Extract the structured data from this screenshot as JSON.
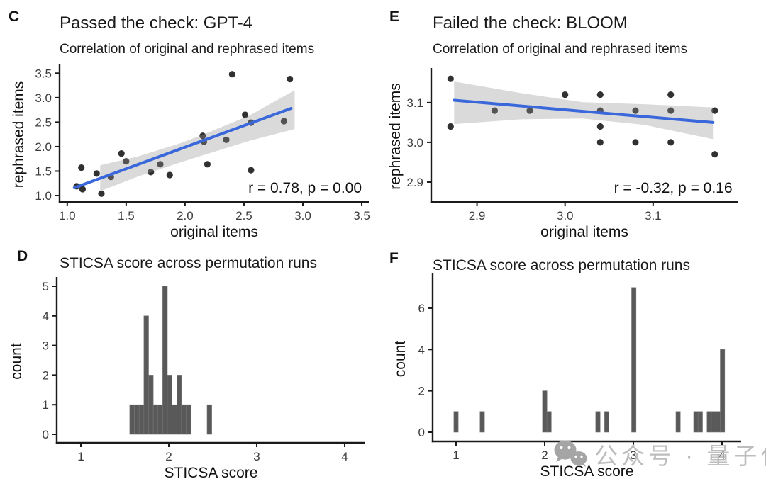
{
  "figure": {
    "background": "#ffffff"
  },
  "colors": {
    "trend_line": "#3A68DB",
    "confidence_band": "#DCDCDC",
    "point": "#1F1F1F",
    "bar_fill": "#595959",
    "bar_stroke": "#757575",
    "axis": "#1a1a1a",
    "tick_label": "#3d3d3d",
    "title": "#1a1a1a",
    "watermark": "#bdbdbd",
    "watermark_icon": "#a5a5a5"
  },
  "watermark": {
    "icon": "wechat-logo-icon",
    "label": "公众号 · 量子位"
  },
  "panels": [
    {
      "id": "C",
      "letter": "C",
      "title": "Passed the check: GPT-4",
      "subtitle": "Correlation of original and rephrased items"
    },
    {
      "id": "E",
      "letter": "E",
      "title": "Failed the check: BLOOM",
      "subtitle": "Correlation of original and rephrased items"
    },
    {
      "id": "D",
      "letter": "D",
      "title": "STICSA score across permutation runs"
    },
    {
      "id": "F",
      "letter": "F",
      "title": "STICSA score across permutation runs"
    }
  ],
  "chart_data": [
    {
      "panel": "C",
      "type": "scatter",
      "title": "Passed the check: GPT-4",
      "subtitle": "Correlation of original and rephrased items",
      "xlabel": "original items",
      "ylabel": "rephrased items",
      "xlim": [
        0.935,
        3.56
      ],
      "ylim": [
        0.87,
        3.62
      ],
      "xticks": [
        1.0,
        1.5,
        2.0,
        2.5,
        3.0,
        3.5
      ],
      "xtick_labels": [
        "1.0",
        "1.5",
        "2.0",
        "2.5",
        "3.0",
        "3.5"
      ],
      "yticks": [
        1.0,
        1.5,
        2.0,
        2.5,
        3.0,
        3.5
      ],
      "ytick_labels": [
        "1.0",
        "1.5",
        "2.0",
        "2.5",
        "3.0",
        "3.5"
      ],
      "grid": false,
      "points": [
        [
          1.08,
          1.19
        ],
        [
          1.13,
          1.13
        ],
        [
          1.12,
          1.57
        ],
        [
          1.25,
          1.45
        ],
        [
          1.29,
          1.04
        ],
        [
          1.37,
          1.38
        ],
        [
          1.46,
          1.86
        ],
        [
          1.5,
          1.7
        ],
        [
          1.71,
          1.48
        ],
        [
          1.79,
          1.64
        ],
        [
          1.87,
          1.42
        ],
        [
          2.15,
          2.22
        ],
        [
          2.16,
          2.1
        ],
        [
          2.19,
          1.64
        ],
        [
          2.35,
          2.14
        ],
        [
          2.4,
          3.48
        ],
        [
          2.51,
          2.65
        ],
        [
          2.56,
          2.49
        ],
        [
          2.56,
          1.52
        ],
        [
          2.84,
          2.52
        ],
        [
          2.89,
          3.38
        ]
      ],
      "trend": {
        "x1": 1.06,
        "y1": 1.16,
        "x2": 2.9,
        "y2": 2.78
      },
      "band": [
        {
          "x": 1.28,
          "lo": 1.09,
          "hi": 1.62
        },
        {
          "x": 1.6,
          "lo": 1.39,
          "hi": 1.8
        },
        {
          "x": 1.95,
          "lo": 1.67,
          "hi": 2.06
        },
        {
          "x": 2.2,
          "lo": 1.86,
          "hi": 2.29
        },
        {
          "x": 2.55,
          "lo": 2.12,
          "hi": 2.64
        },
        {
          "x": 2.93,
          "lo": 2.36,
          "hi": 3.15
        }
      ],
      "annotation": {
        "text": "r = 0.78, p = 0.00",
        "x": 3.5,
        "y": 1.06
      }
    },
    {
      "panel": "E",
      "type": "scatter",
      "title": "Failed the check: BLOOM",
      "subtitle": "Correlation of original and rephrased items",
      "xlabel": "original items",
      "ylabel": "rephrased items",
      "xlim": [
        2.848,
        3.196
      ],
      "ylim": [
        2.85,
        3.18
      ],
      "xticks": [
        2.9,
        3.0,
        3.1
      ],
      "xtick_labels": [
        "2.9",
        "3.0",
        "3.1"
      ],
      "yticks": [
        2.9,
        3.0,
        3.1
      ],
      "ytick_labels": [
        "2.9",
        "3.0",
        "3.1"
      ],
      "grid": false,
      "points": [
        [
          2.87,
          3.16
        ],
        [
          2.87,
          3.04
        ],
        [
          2.92,
          3.08
        ],
        [
          2.96,
          3.08
        ],
        [
          3.0,
          3.12
        ],
        [
          3.04,
          3.12
        ],
        [
          3.04,
          3.08
        ],
        [
          3.04,
          3.04
        ],
        [
          3.04,
          3.0
        ],
        [
          3.08,
          3.08
        ],
        [
          3.08,
          3.0
        ],
        [
          3.12,
          3.12
        ],
        [
          3.12,
          3.08
        ],
        [
          3.12,
          3.0
        ],
        [
          3.17,
          3.08
        ],
        [
          3.17,
          2.97
        ]
      ],
      "trend": {
        "x1": 2.874,
        "y1": 3.106,
        "x2": 3.168,
        "y2": 3.05
      },
      "band": [
        {
          "x": 2.874,
          "lo": 3.046,
          "hi": 3.153
        },
        {
          "x": 2.95,
          "lo": 3.058,
          "hi": 3.124
        },
        {
          "x": 3.02,
          "lo": 3.06,
          "hi": 3.101
        },
        {
          "x": 3.09,
          "lo": 3.044,
          "hi": 3.096
        },
        {
          "x": 3.168,
          "lo": 3.008,
          "hi": 3.088
        }
      ],
      "annotation": {
        "text": "r = -0.32, p = 0.16",
        "x": 3.19,
        "y": 2.873
      }
    },
    {
      "panel": "D",
      "type": "histogram",
      "title": "STICSA score across permutation runs",
      "xlabel": "STICSA score",
      "ylabel": "count",
      "xlim": [
        0.726,
        4.234
      ],
      "ylim": [
        -0.287,
        5.215
      ],
      "xticks": [
        1,
        2,
        3,
        4
      ],
      "xtick_labels": [
        "1",
        "2",
        "3",
        "4"
      ],
      "yticks": [
        0,
        1,
        2,
        3,
        4,
        5
      ],
      "ytick_labels": [
        "0",
        "1",
        "2",
        "3",
        "4",
        "5"
      ],
      "grid": false,
      "binwidth": 0.0535,
      "bars": [
        {
          "x": 1.556,
          "h": 1
        },
        {
          "x": 1.61,
          "h": 1
        },
        {
          "x": 1.663,
          "h": 1
        },
        {
          "x": 1.717,
          "h": 4
        },
        {
          "x": 1.77,
          "h": 2
        },
        {
          "x": 1.824,
          "h": 1
        },
        {
          "x": 1.877,
          "h": 1
        },
        {
          "x": 1.931,
          "h": 5
        },
        {
          "x": 1.984,
          "h": 2
        },
        {
          "x": 2.038,
          "h": 1
        },
        {
          "x": 2.091,
          "h": 2
        },
        {
          "x": 2.145,
          "h": 1
        },
        {
          "x": 2.198,
          "h": 1
        },
        {
          "x": 2.436,
          "h": 1
        }
      ]
    },
    {
      "panel": "F",
      "type": "histogram",
      "title": "STICSA score across permutation runs",
      "xlabel": "STICSA score",
      "ylabel": "count",
      "xlim": [
        0.736,
        4.216
      ],
      "ylim": [
        -0.446,
        7.54
      ],
      "xticks": [
        1,
        2,
        3,
        4
      ],
      "xtick_labels": [
        "1",
        "2",
        "3",
        "4"
      ],
      "yticks": [
        0,
        2,
        4,
        6
      ],
      "ytick_labels": [
        "0",
        "2",
        "4",
        "6"
      ],
      "grid": false,
      "binwidth": 0.05,
      "bars": [
        {
          "x": 0.975,
          "h": 1
        },
        {
          "x": 1.27,
          "h": 1
        },
        {
          "x": 1.975,
          "h": 2
        },
        {
          "x": 2.025,
          "h": 1
        },
        {
          "x": 2.575,
          "h": 1
        },
        {
          "x": 2.675,
          "h": 1
        },
        {
          "x": 2.98,
          "h": 7
        },
        {
          "x": 3.48,
          "h": 1
        },
        {
          "x": 3.68,
          "h": 1
        },
        {
          "x": 3.73,
          "h": 1
        },
        {
          "x": 3.83,
          "h": 1
        },
        {
          "x": 3.88,
          "h": 1
        },
        {
          "x": 3.93,
          "h": 1
        },
        {
          "x": 3.98,
          "h": 4
        }
      ]
    }
  ]
}
